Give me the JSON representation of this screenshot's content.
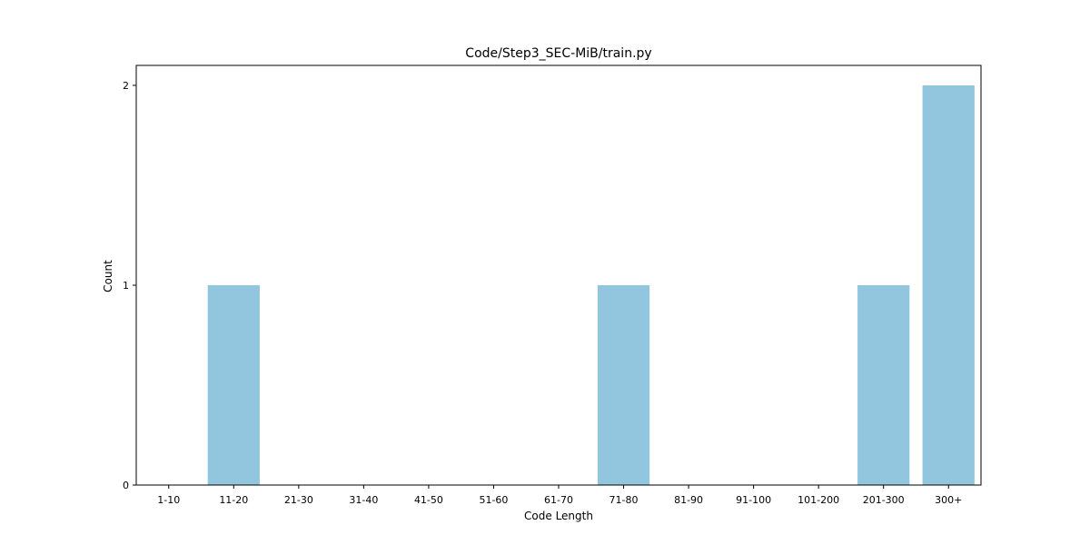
{
  "chart_data": {
    "type": "bar",
    "title": "Code/Step3_SEC-MiB/train.py",
    "xlabel": "Code Length",
    "ylabel": "Count",
    "categories": [
      "1-10",
      "11-20",
      "21-30",
      "31-40",
      "41-50",
      "51-60",
      "61-70",
      "71-80",
      "81-90",
      "91-100",
      "101-200",
      "201-300",
      "300+"
    ],
    "values": [
      0,
      1,
      0,
      0,
      0,
      0,
      0,
      1,
      0,
      0,
      0,
      1,
      2
    ],
    "ylim": [
      0,
      2.1
    ],
    "yticks": [
      0,
      1,
      2
    ],
    "grid": false,
    "bar_color": "#92c5de"
  }
}
